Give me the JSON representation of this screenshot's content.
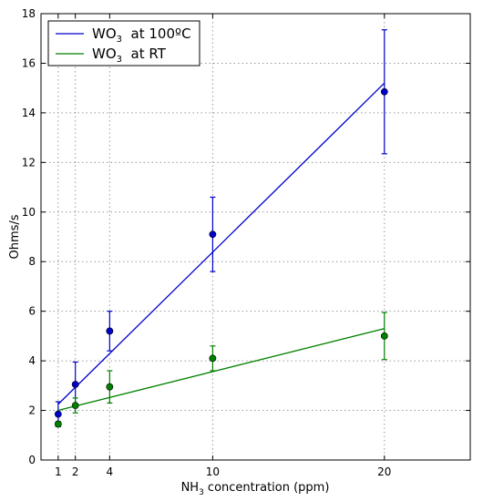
{
  "chart_data": {
    "type": "scatter",
    "xlabel": "NH3 concentration (ppm)",
    "xlabel_main": "NH",
    "xlabel_sub": "3",
    "xlabel_rest": " concentration (ppm)",
    "ylabel": "Ohms/s",
    "xlim": [
      0,
      25
    ],
    "ylim": [
      0,
      18
    ],
    "xticks": [
      1,
      2,
      4,
      10,
      20
    ],
    "yticks": [
      0,
      2,
      4,
      6,
      8,
      10,
      12,
      14,
      16,
      18
    ],
    "grid": true,
    "legend_position": "top-left",
    "series": [
      {
        "name": "WO3  at 100ºC",
        "name_main": "WO",
        "name_sub": "3",
        "name_rest": "  at 100ºC",
        "color": "#0000cc",
        "x": [
          1,
          2,
          4,
          10,
          20
        ],
        "y": [
          1.85,
          3.05,
          5.2,
          9.1,
          14.85
        ],
        "err": [
          0.5,
          0.9,
          0.8,
          1.5,
          2.5
        ],
        "fit": {
          "x": [
            1,
            20
          ],
          "y": [
            2.25,
            15.2
          ]
        }
      },
      {
        "name": "WO3  at RT",
        "name_main": "WO",
        "name_sub": "3",
        "name_rest": "  at RT",
        "color": "#008000",
        "x": [
          1,
          2,
          4,
          10,
          20
        ],
        "y": [
          1.45,
          2.2,
          2.95,
          4.1,
          5.0
        ],
        "err": [
          0.1,
          0.3,
          0.65,
          0.5,
          0.95
        ],
        "fit": {
          "x": [
            1,
            20
          ],
          "y": [
            2.0,
            5.3
          ]
        }
      }
    ]
  }
}
